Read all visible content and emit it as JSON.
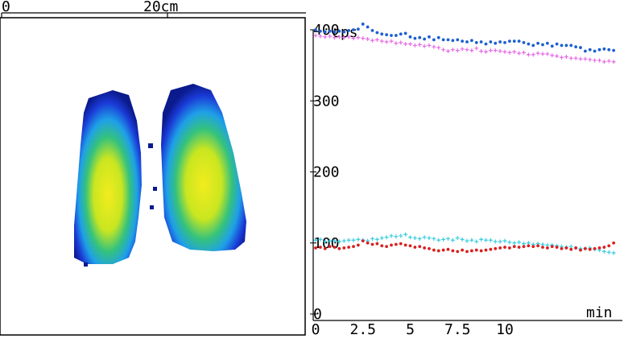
{
  "scale": {
    "left_label": "0",
    "mid_label": "20cm"
  },
  "chart_data": {
    "type": "scatter",
    "title": "",
    "xlabel": "min",
    "ylabel": "cps",
    "xlim": [
      0,
      16
    ],
    "ylim": [
      0,
      400
    ],
    "x_ticks": [
      "0",
      "2.5",
      "5",
      "7.5",
      "10"
    ],
    "y_ticks": [
      "0",
      "100",
      "200",
      "300",
      "400"
    ],
    "grid": false,
    "series": [
      {
        "color": "#1c5fd0",
        "marker": "dot",
        "x": [
          0.0,
          0.25,
          0.5,
          0.75,
          1.0,
          1.25,
          1.5,
          1.75,
          2.0,
          2.25,
          2.5,
          2.75,
          3.0,
          3.25,
          3.5,
          3.75,
          4.0,
          4.25,
          4.5,
          4.75,
          5.0,
          5.25,
          5.5,
          5.75,
          6.0,
          6.25,
          6.5,
          6.75,
          7.0,
          7.25,
          7.5,
          7.75,
          8.0,
          8.25,
          8.5,
          8.75,
          9.0,
          9.25,
          9.5,
          9.75,
          10.0,
          10.25,
          10.5,
          10.75,
          11.0,
          11.25,
          11.5,
          11.75,
          12.0,
          12.25,
          12.5,
          12.75,
          13.0,
          13.25,
          13.5,
          13.75,
          14.0,
          14.25,
          14.5,
          14.75,
          15.0,
          15.25,
          15.5,
          15.75
        ],
        "y": [
          400,
          398,
          397,
          398,
          397,
          398,
          397,
          399,
          400,
          401,
          408,
          404,
          399,
          396,
          394,
          393,
          392,
          392,
          394,
          395,
          390,
          388,
          389,
          387,
          390,
          386,
          389,
          386,
          386,
          385,
          386,
          384,
          383,
          385,
          382,
          383,
          380,
          383,
          381,
          383,
          382,
          384,
          384,
          384,
          382,
          380,
          378,
          381,
          379,
          381,
          377,
          380,
          378,
          378,
          378,
          376,
          375,
          370,
          372,
          370,
          372,
          373,
          372,
          371
        ]
      },
      {
        "color": "#e66ce6",
        "marker": "plus",
        "x": [
          0.0,
          0.25,
          0.5,
          0.75,
          1.0,
          1.25,
          1.5,
          1.75,
          2.0,
          2.25,
          2.5,
          2.75,
          3.0,
          3.25,
          3.5,
          3.75,
          4.0,
          4.25,
          4.5,
          4.75,
          5.0,
          5.25,
          5.5,
          5.75,
          6.0,
          6.25,
          6.5,
          6.75,
          7.0,
          7.25,
          7.5,
          7.75,
          8.0,
          8.25,
          8.5,
          8.75,
          9.0,
          9.25,
          9.5,
          9.75,
          10.0,
          10.25,
          10.5,
          10.75,
          11.0,
          11.25,
          11.5,
          11.75,
          12.0,
          12.25,
          12.5,
          12.75,
          13.0,
          13.25,
          13.5,
          13.75,
          14.0,
          14.25,
          14.5,
          14.75,
          15.0,
          15.25,
          15.5,
          15.75
        ],
        "y": [
          392,
          391,
          390,
          391,
          389,
          390,
          389,
          390,
          388,
          389,
          388,
          387,
          385,
          386,
          384,
          383,
          384,
          381,
          382,
          380,
          380,
          378,
          379,
          377,
          378,
          376,
          375,
          372,
          370,
          372,
          371,
          373,
          372,
          371,
          374,
          370,
          369,
          371,
          371,
          370,
          369,
          368,
          369,
          367,
          368,
          365,
          365,
          367,
          366,
          366,
          364,
          363,
          361,
          362,
          360,
          360,
          359,
          359,
          358,
          357,
          357,
          355,
          356,
          355
        ]
      },
      {
        "color": "#3ccde0",
        "marker": "plus",
        "x": [
          0.0,
          0.25,
          0.5,
          0.75,
          1.0,
          1.25,
          1.5,
          1.75,
          2.0,
          2.25,
          2.5,
          2.75,
          3.0,
          3.25,
          3.5,
          3.75,
          4.0,
          4.25,
          4.5,
          4.75,
          5.0,
          5.25,
          5.5,
          5.75,
          6.0,
          6.25,
          6.5,
          6.75,
          7.0,
          7.25,
          7.5,
          7.75,
          8.0,
          8.25,
          8.5,
          8.75,
          9.0,
          9.25,
          9.5,
          9.75,
          10.0,
          10.25,
          10.5,
          10.75,
          11.0,
          11.25,
          11.5,
          11.75,
          12.0,
          12.25,
          12.5,
          12.75,
          13.0,
          13.25,
          13.5,
          13.75,
          14.0,
          14.25,
          14.5,
          14.75,
          15.0,
          15.25,
          15.5,
          15.75
        ],
        "y": [
          104,
          105,
          102,
          103,
          103,
          102,
          103,
          104,
          104,
          105,
          104,
          103,
          106,
          105,
          107,
          108,
          110,
          109,
          110,
          112,
          108,
          107,
          106,
          108,
          107,
          106,
          104,
          105,
          106,
          104,
          107,
          105,
          103,
          104,
          102,
          105,
          104,
          104,
          102,
          102,
          103,
          101,
          100,
          101,
          99,
          100,
          98,
          99,
          98,
          97,
          97,
          96,
          95,
          94,
          95,
          93,
          92,
          92,
          93,
          91,
          90,
          88,
          87,
          86
        ]
      },
      {
        "color": "#d92020",
        "marker": "dot",
        "x": [
          0.0,
          0.25,
          0.5,
          0.75,
          1.0,
          1.25,
          1.5,
          1.75,
          2.0,
          2.25,
          2.5,
          2.75,
          3.0,
          3.25,
          3.5,
          3.75,
          4.0,
          4.25,
          4.5,
          4.75,
          5.0,
          5.25,
          5.5,
          5.75,
          6.0,
          6.25,
          6.5,
          6.75,
          7.0,
          7.25,
          7.5,
          7.75,
          8.0,
          8.25,
          8.5,
          8.75,
          9.0,
          9.25,
          9.5,
          9.75,
          10.0,
          10.25,
          10.5,
          10.75,
          11.0,
          11.25,
          11.5,
          11.75,
          12.0,
          12.25,
          12.5,
          12.75,
          13.0,
          13.25,
          13.5,
          13.75,
          14.0,
          14.25,
          14.5,
          14.75,
          15.0,
          15.25,
          15.5,
          15.75
        ],
        "y": [
          93,
          94,
          92,
          95,
          94,
          92,
          93,
          94,
          95,
          97,
          103,
          100,
          98,
          99,
          96,
          95,
          97,
          98,
          99,
          97,
          96,
          94,
          95,
          93,
          92,
          90,
          89,
          90,
          91,
          89,
          88,
          90,
          88,
          89,
          90,
          89,
          90,
          91,
          92,
          93,
          94,
          93,
          95,
          94,
          95,
          96,
          95,
          96,
          94,
          93,
          95,
          94,
          92,
          93,
          91,
          93,
          90,
          92,
          91,
          92,
          93,
          94,
          96,
          100
        ]
      }
    ]
  }
}
